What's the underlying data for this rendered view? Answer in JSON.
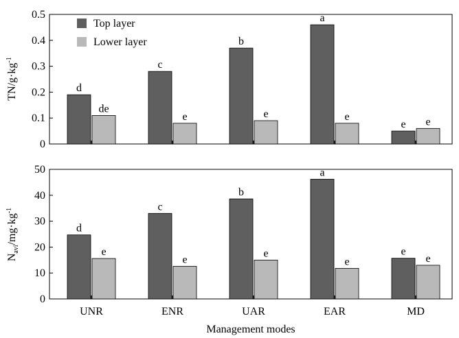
{
  "chart_data": [
    {
      "type": "bar",
      "categories": [
        "UNR",
        "ENR",
        "UAR",
        "EAR",
        "MD"
      ],
      "ylabel": "TN/g·kg",
      "ylabel_sup": "-1",
      "ylim": [
        0,
        0.5
      ],
      "yticks": [
        "0",
        "0.1",
        "0.2",
        "0.3",
        "0.4",
        "0.5"
      ],
      "ytick_values": [
        0,
        0.1,
        0.2,
        0.3,
        0.4,
        0.5
      ],
      "series": [
        {
          "name": "Top layer",
          "color": "#5f5f5f",
          "values": [
            0.19,
            0.28,
            0.37,
            0.46,
            0.05
          ],
          "labels": [
            "d",
            "c",
            "b",
            "a",
            "e"
          ]
        },
        {
          "name": "Lower layer",
          "color": "#b9b9b9",
          "values": [
            0.11,
            0.08,
            0.09,
            0.08,
            0.06
          ],
          "labels": [
            "de",
            "e",
            "e",
            "e",
            "e"
          ]
        }
      ],
      "legend": "top-left",
      "grid": false
    },
    {
      "type": "bar",
      "categories": [
        "UNR",
        "ENR",
        "UAR",
        "EAR",
        "MD"
      ],
      "ylabel_main": "N",
      "ylabel_sub": "avi",
      "ylabel_rest": "/mg·kg",
      "ylabel_sup": "-1",
      "ylim": [
        0,
        50
      ],
      "yticks": [
        "0",
        "10",
        "20",
        "30",
        "40",
        "50"
      ],
      "ytick_values": [
        0,
        10,
        20,
        30,
        40,
        50
      ],
      "series": [
        {
          "name": "Top layer",
          "color": "#5f5f5f",
          "values": [
            24.7,
            33.0,
            38.6,
            46.2,
            15.7
          ],
          "labels": [
            "d",
            "c",
            "b",
            "a",
            "e"
          ]
        },
        {
          "name": "Lower layer",
          "color": "#b9b9b9",
          "values": [
            15.6,
            12.6,
            15.0,
            11.8,
            13.0
          ],
          "labels": [
            "e",
            "e",
            "e",
            "e",
            "e"
          ]
        }
      ],
      "grid": false
    }
  ],
  "xlabel": "Management modes"
}
